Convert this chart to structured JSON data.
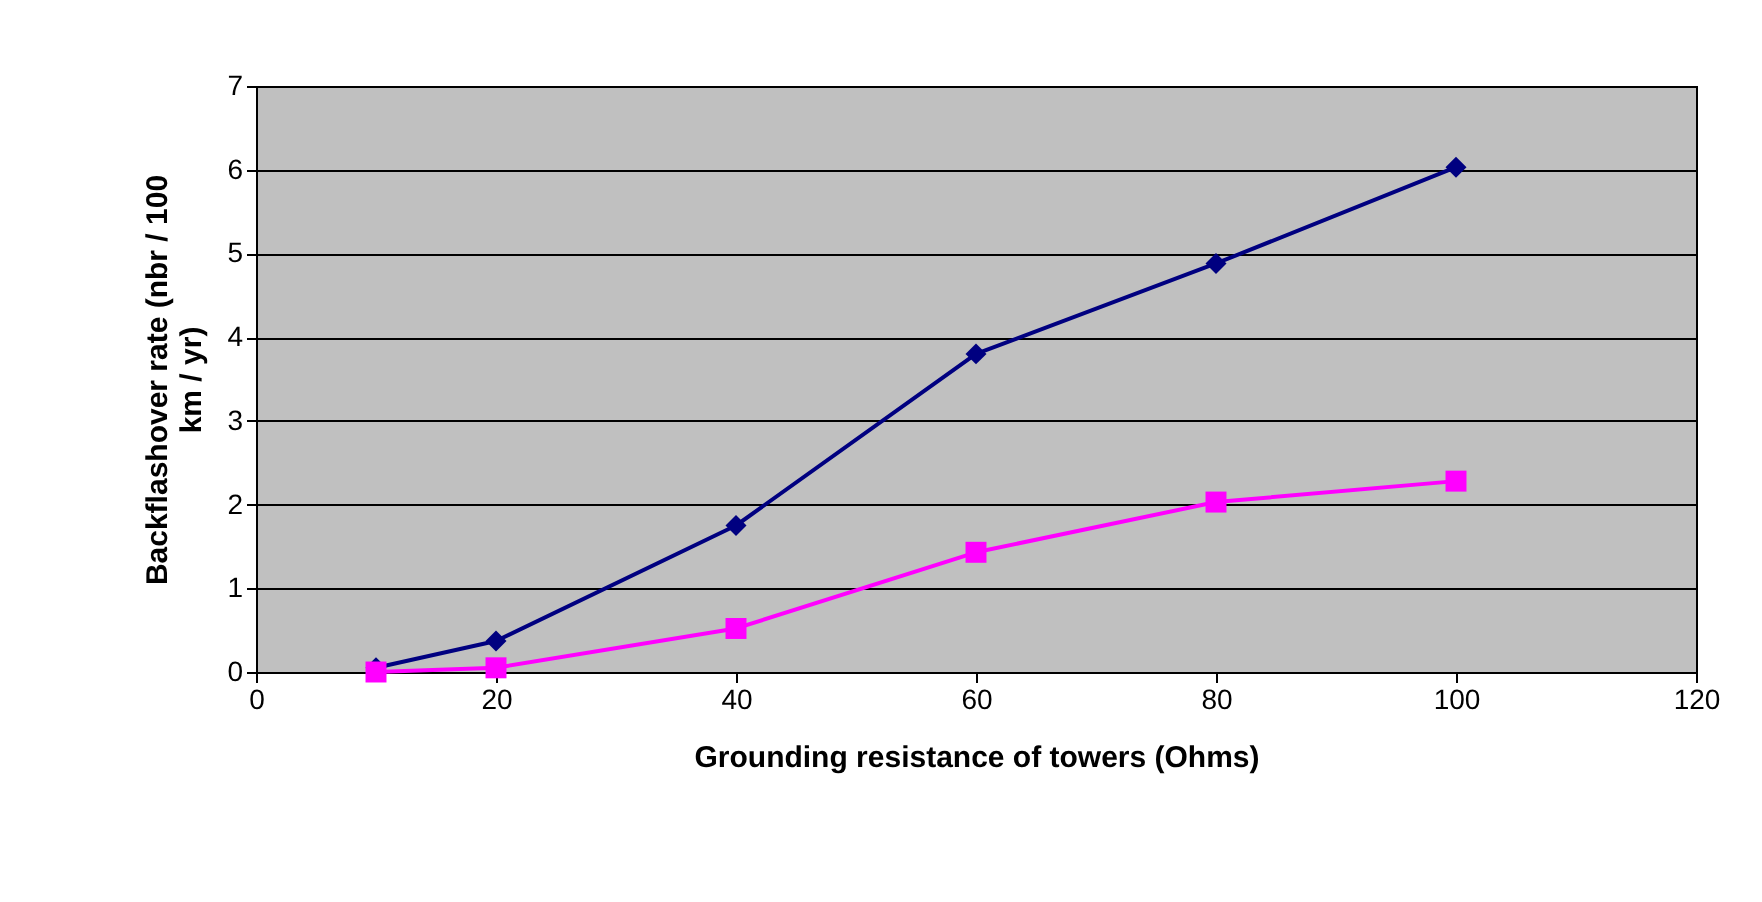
{
  "chart_data": {
    "type": "line",
    "xlabel": "Grounding resistance of towers (Ohms)",
    "ylabel": "Backflashover rate (nbr / 100 km / yr)",
    "xlim": [
      0,
      120
    ],
    "xticks": [
      0,
      20,
      40,
      60,
      80,
      100,
      120
    ],
    "ylim": [
      0,
      7
    ],
    "yticks": [
      0,
      1,
      2,
      3,
      4,
      5,
      6,
      7
    ],
    "grid": "y",
    "series": [
      {
        "color": "#000080",
        "marker": "diamond",
        "x": [
          10,
          20,
          40,
          60,
          80,
          100
        ],
        "values": [
          0.05,
          0.37,
          1.75,
          3.8,
          4.88,
          6.03
        ]
      },
      {
        "color": "#ff00ff",
        "marker": "square",
        "x": [
          10,
          20,
          40,
          60,
          80,
          100
        ],
        "values": [
          0,
          0.05,
          0.52,
          1.43,
          2.03,
          2.28
        ]
      }
    ]
  }
}
